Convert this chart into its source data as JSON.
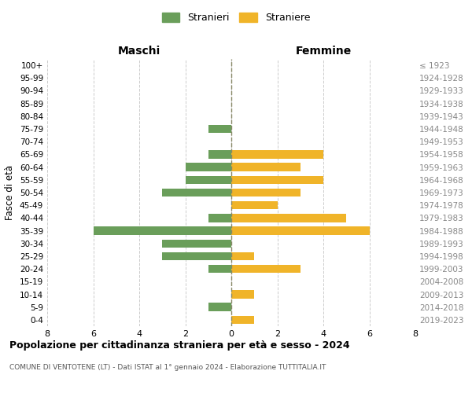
{
  "age_groups": [
    "100+",
    "95-99",
    "90-94",
    "85-89",
    "80-84",
    "75-79",
    "70-74",
    "65-69",
    "60-64",
    "55-59",
    "50-54",
    "45-49",
    "40-44",
    "35-39",
    "30-34",
    "25-29",
    "20-24",
    "15-19",
    "10-14",
    "5-9",
    "0-4"
  ],
  "birth_years": [
    "≤ 1923",
    "1924-1928",
    "1929-1933",
    "1934-1938",
    "1939-1943",
    "1944-1948",
    "1949-1953",
    "1954-1958",
    "1959-1963",
    "1964-1968",
    "1969-1973",
    "1974-1978",
    "1979-1983",
    "1984-1988",
    "1989-1993",
    "1994-1998",
    "1999-2003",
    "2004-2008",
    "2009-2013",
    "2014-2018",
    "2019-2023"
  ],
  "males": [
    0,
    0,
    0,
    0,
    0,
    1,
    0,
    1,
    2,
    2,
    3,
    0,
    1,
    6,
    3,
    3,
    1,
    0,
    0,
    1,
    0
  ],
  "females": [
    0,
    0,
    0,
    0,
    0,
    0,
    0,
    4,
    3,
    4,
    3,
    2,
    5,
    6,
    0,
    1,
    3,
    0,
    1,
    0,
    1
  ],
  "male_color": "#6a9e5a",
  "female_color": "#f0b429",
  "xlim": 8,
  "title_main": "Popolazione per cittadinanza straniera per età e sesso - 2024",
  "title_sub": "COMUNE DI VENTOTENE (LT) - Dati ISTAT al 1° gennaio 2024 - Elaborazione TUTTITALIA.IT",
  "xlabel_left": "Maschi",
  "xlabel_right": "Femmine",
  "ylabel_left": "Fasce di età",
  "legend_male": "Stranieri",
  "legend_female": "Straniere",
  "grid_color": "#cccccc",
  "background_color": "#ffffff",
  "center_line_color": "#888866"
}
